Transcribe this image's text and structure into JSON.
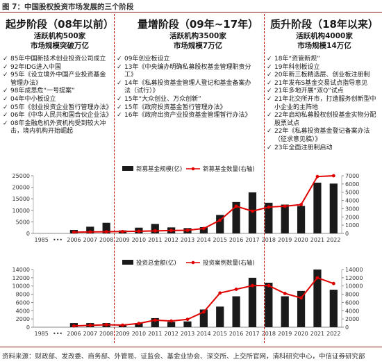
{
  "figure_title": "图 7：中国股权投资市场发展的三个阶段",
  "stages": [
    {
      "title": "起步阶段（08年以前）",
      "sub1": "活跃机构500家",
      "sub2": "市场规模突破万亿",
      "bullets": [
        "85年中国新技术创业投资公司成立",
        "92年IDG进入中国",
        "95年《设立境外中国产业投资基金管理办法》",
        "98年成思危“一号提案”",
        "04年中小板设立",
        "05年《创业投资企业暂行管理办法》",
        "06年《中华人民共和国合伙企业法》",
        "08年金融危机外资机构受到较大冲击，境内机构开始崛起"
      ]
    },
    {
      "title": "量增阶段（09年~17年）",
      "sub1": "活跃机构3500家",
      "sub2": "市场规模7万亿",
      "bullets": [
        "09年创业板设立",
        "13年《中央编办明确私募股权基金管理职责分工》",
        "14年《私募投资基金管理人登记和基金备案办法（试行）》",
        "15年“大众创业、万众创新”",
        "15年《政府投资基金暂行管理办法》",
        "16年《政府出资产业投资基金管理暂行办法》"
      ]
    },
    {
      "title": "质升阶段（18年以来）",
      "sub1": "活跃机构4000家",
      "sub2": "市场规模14万亿",
      "bullets": [
        "18年“资管新规”",
        "19年科创板设立",
        "20年新三板精选层、创业板注册制",
        "21年发布S基金交易试点指导意见",
        "21年多地开展“双Q”试点",
        "21年北交所开市，打造服务创新型中小企业的主阵地",
        "22年启动私募股权创投基金实物分配股票试点",
        "22年《私募投资基金登记备案办法（征求意见稿）》",
        "23年全面注册制启动"
      ]
    }
  ],
  "colors": {
    "bar": "#1a1a1a",
    "line": "#e00000",
    "divider": "#c00000",
    "axis": "#888888"
  },
  "chart_data": [
    {
      "type": "bar",
      "categories": [
        "1985",
        "•••",
        "2006",
        "2007",
        "2008",
        "2009",
        "2010",
        "2011",
        "2012",
        "2013",
        "2014",
        "2015",
        "2016",
        "2017",
        "2018",
        "2019",
        "2020",
        "2021",
        "2022"
      ],
      "series": [
        {
          "name": "新募基金规模(亿)",
          "type": "bar",
          "axis": "left",
          "values": [
            null,
            null,
            1500,
            2900,
            4600,
            1300,
            2500,
            4100,
            2600,
            2300,
            2700,
            8000,
            13600,
            17800,
            13300,
            12500,
            11900,
            22000,
            21600
          ]
        },
        {
          "name": "新募基金数量(右轴)",
          "type": "line",
          "axis": "right",
          "values": [
            null,
            null,
            150,
            180,
            200,
            230,
            260,
            310,
            350,
            380,
            600,
            1600,
            3300,
            2700,
            3200,
            3300,
            3500,
            6900,
            7000
          ]
        }
      ],
      "ylim": [
        0,
        25000
      ],
      "yticks": [
        0,
        5000,
        10000,
        15000,
        20000,
        25000
      ],
      "y2lim": [
        0,
        7000
      ],
      "y2ticks": [
        0,
        1000,
        2000,
        3000,
        4000,
        5000,
        6000,
        7000
      ],
      "legend": "top"
    },
    {
      "type": "bar",
      "categories": [
        "1985",
        "•••",
        "2006",
        "2007",
        "2008",
        "2009",
        "2010",
        "2011",
        "2012",
        "2013",
        "2014",
        "2015",
        "2016",
        "2017",
        "2018",
        "2019",
        "2020",
        "2021",
        "2022"
      ],
      "series": [
        {
          "name": "投资总金额(亿)",
          "type": "bar",
          "axis": "left",
          "values": [
            null,
            null,
            1000,
            1000,
            1000,
            600,
            1000,
            2200,
            1300,
            1400,
            4300,
            5000,
            7500,
            12000,
            10800,
            7500,
            8800,
            14000,
            9100
          ]
        },
        {
          "name": "投资案例数量(右轴)",
          "type": "line",
          "axis": "right",
          "values": [
            null,
            null,
            300,
            450,
            600,
            500,
            900,
            1700,
            1500,
            1900,
            3700,
            8300,
            9200,
            10100,
            10100,
            8200,
            7100,
            12000,
            10600
          ]
        }
      ],
      "ylim": [
        0,
        14000
      ],
      "yticks": [
        0,
        2000,
        4000,
        6000,
        8000,
        10000,
        12000,
        14000
      ],
      "y2lim": [
        0,
        14000
      ],
      "y2ticks": [
        0,
        2000,
        4000,
        6000,
        8000,
        10000,
        12000,
        14000
      ],
      "legend": "top"
    }
  ],
  "source": "资料来源：财政部、发改委、商务部、外管局、证监会、基金业协会、深交所、上交所官网，清科研究中心，中信证券研究部"
}
